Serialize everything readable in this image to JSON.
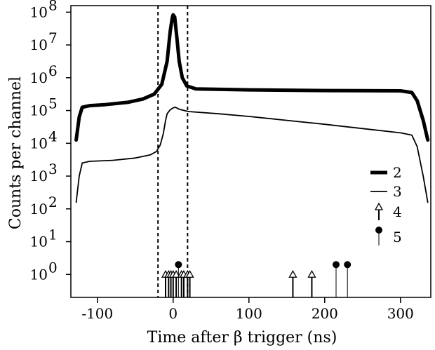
{
  "chart_data": {
    "type": "line",
    "xlabel": "Time after β trigger (ns)",
    "ylabel": "Counts per channel",
    "xlim": [
      -135,
      340
    ],
    "ylim_log10": [
      -0.7,
      8.2
    ],
    "y_scale": "log",
    "x_ticks": [
      -100,
      0,
      100,
      200,
      300
    ],
    "x_tick_labels": [
      "-100",
      "0",
      "100",
      "200",
      "300"
    ],
    "y_tick_exponents": [
      0,
      1,
      2,
      3,
      4,
      5,
      6,
      7,
      8
    ],
    "y_tick_base": "10",
    "grid": false,
    "legend_position": "right",
    "vertical_lines": [
      -20,
      19
    ],
    "series": [
      {
        "name": "2",
        "style": "thick-line",
        "points": [
          [
            -128,
            4.1
          ],
          [
            -124,
            4.8
          ],
          [
            -120,
            5.1
          ],
          [
            -110,
            5.15
          ],
          [
            -90,
            5.18
          ],
          [
            -60,
            5.25
          ],
          [
            -40,
            5.35
          ],
          [
            -25,
            5.5
          ],
          [
            -15,
            5.8
          ],
          [
            -8,
            6.5
          ],
          [
            -4,
            7.4
          ],
          [
            -1,
            7.85
          ],
          [
            0,
            7.92
          ],
          [
            2,
            7.85
          ],
          [
            5,
            7.2
          ],
          [
            8,
            6.5
          ],
          [
            12,
            6.0
          ],
          [
            18,
            5.75
          ],
          [
            30,
            5.66
          ],
          [
            100,
            5.63
          ],
          [
            200,
            5.61
          ],
          [
            300,
            5.6
          ],
          [
            315,
            5.55
          ],
          [
            322,
            5.3
          ],
          [
            330,
            4.7
          ],
          [
            336,
            4.1
          ]
        ]
      },
      {
        "name": "3",
        "style": "thin-line",
        "points": [
          [
            -128,
            2.2
          ],
          [
            -124,
            3.0
          ],
          [
            -120,
            3.4
          ],
          [
            -110,
            3.45
          ],
          [
            -80,
            3.48
          ],
          [
            -50,
            3.55
          ],
          [
            -30,
            3.65
          ],
          [
            -22,
            3.75
          ],
          [
            -17,
            3.95
          ],
          [
            -13,
            4.3
          ],
          [
            -10,
            4.7
          ],
          [
            -8,
            4.9
          ],
          [
            -4,
            5.02
          ],
          [
            0,
            5.08
          ],
          [
            3,
            5.1
          ],
          [
            8,
            5.04
          ],
          [
            20,
            4.97
          ],
          [
            60,
            4.9
          ],
          [
            100,
            4.82
          ],
          [
            150,
            4.7
          ],
          [
            200,
            4.58
          ],
          [
            250,
            4.45
          ],
          [
            300,
            4.32
          ],
          [
            315,
            4.25
          ],
          [
            322,
            3.9
          ],
          [
            330,
            3.0
          ],
          [
            336,
            2.2
          ]
        ]
      },
      {
        "name": "4",
        "style": "open-triangle",
        "points": [
          [
            -10,
            0
          ],
          [
            -6,
            0
          ],
          [
            -3,
            0
          ],
          [
            0,
            0
          ],
          [
            4,
            0
          ],
          [
            11,
            0
          ],
          [
            14,
            0
          ],
          [
            19,
            0
          ],
          [
            22,
            0
          ],
          [
            158,
            0
          ],
          [
            183,
            0
          ]
        ]
      },
      {
        "name": "5",
        "style": "filled-circle",
        "points": [
          [
            7,
            0.3
          ],
          [
            215,
            0.3
          ],
          [
            230,
            0.3
          ]
        ]
      }
    ]
  }
}
